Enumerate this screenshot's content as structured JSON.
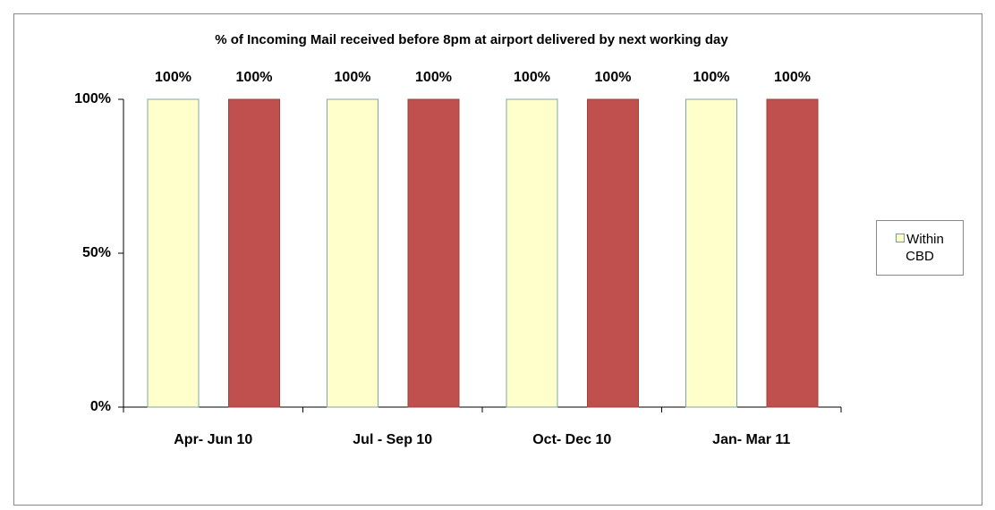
{
  "chart_data": {
    "type": "bar",
    "title": "% of Incoming Mail received before 8pm at airport delivered by next working day",
    "categories": [
      "Apr- Jun 10",
      "Jul - Sep 10",
      "Oct- Dec 10",
      "Jan- Mar 11"
    ],
    "series": [
      {
        "name": "Within CBD",
        "color": "#ffffcc",
        "values": [
          100,
          100,
          100,
          100
        ],
        "value_labels": [
          "100%",
          "100%",
          "100%",
          "100%"
        ]
      },
      {
        "color": "#c0504d",
        "values": [
          100,
          100,
          100,
          100
        ],
        "value_labels": [
          "100%",
          "100%",
          "100%",
          "100%"
        ]
      }
    ],
    "ylim": [
      0,
      100
    ],
    "yticks": [
      {
        "value": 0,
        "label": "0%"
      },
      {
        "value": 50,
        "label": "50%"
      },
      {
        "value": 100,
        "label": "100%"
      }
    ],
    "legend": "right"
  }
}
